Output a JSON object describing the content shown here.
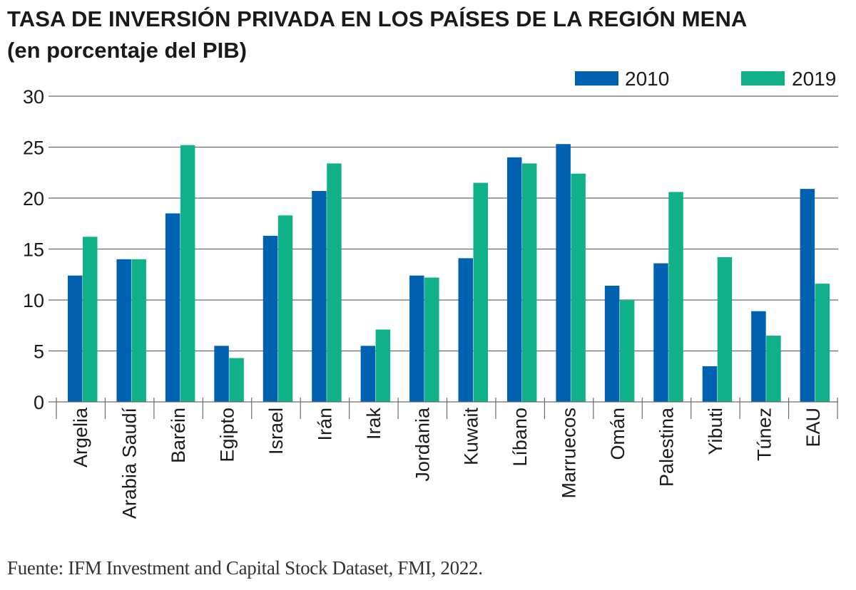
{
  "header": {
    "title": "TASA DE INVERSIÓN PRIVADA EN LOS PAÍSES DE LA REGIÓN MENA",
    "subtitle": "(en porcentaje del PIB)"
  },
  "footer": {
    "source": "Fuente: IFM Investment and Capital Stock Dataset, FMI, 2022."
  },
  "colors": {
    "series_2010": "#0061b0",
    "series_2019": "#10b088",
    "grid": "#6b6b6b"
  },
  "chart_data": {
    "type": "bar",
    "title": "TASA DE INVERSIÓN PRIVADA EN LOS PAÍSES DE LA REGIÓN MENA",
    "subtitle": "(en porcentaje del PIB)",
    "xlabel": "",
    "ylabel": "",
    "ylim": [
      0,
      30
    ],
    "yticks": [
      0,
      5,
      10,
      15,
      20,
      25,
      30
    ],
    "grid": true,
    "legend_position": "top-right",
    "categories": [
      "Argelia",
      "Arabia Saudí",
      "Baréin",
      "Egipto",
      "Israel",
      "Irán",
      "Irak",
      "Jordania",
      "Kuwait",
      "Líbano",
      "Marruecos",
      "Omán",
      "Palestina",
      "Yibuti",
      "Túnez",
      "EAU"
    ],
    "series": [
      {
        "name": "2010",
        "color": "#0061b0",
        "values": [
          12.4,
          14.0,
          18.5,
          5.5,
          16.3,
          20.7,
          5.5,
          12.4,
          14.1,
          24.0,
          25.3,
          11.4,
          13.6,
          3.5,
          8.9,
          20.9
        ]
      },
      {
        "name": "2019",
        "color": "#10b088",
        "values": [
          16.2,
          14.0,
          25.2,
          4.3,
          18.3,
          23.4,
          7.1,
          12.2,
          21.5,
          23.4,
          22.4,
          10.0,
          20.6,
          14.2,
          6.5,
          11.6
        ]
      }
    ],
    "source": "Fuente: IFM Investment and Capital Stock Dataset, FMI, 2022."
  }
}
